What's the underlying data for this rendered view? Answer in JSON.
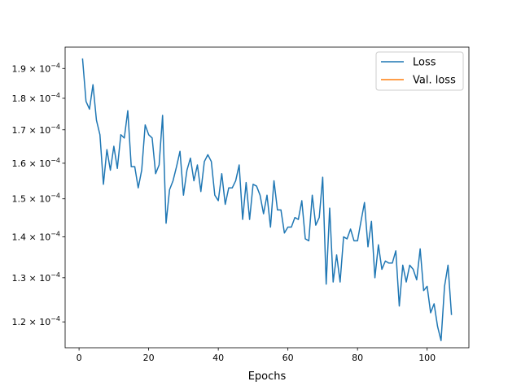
{
  "chart_data": {
    "type": "line",
    "xlabel": "Epochs",
    "ylabel": "",
    "title": "",
    "xlim": [
      -4,
      112
    ],
    "ylim": [
      0.0001145,
      0.0001975
    ],
    "yscale": "log",
    "grid": false,
    "legend_position": "top-right",
    "x_ticks": [
      0,
      20,
      40,
      60,
      80,
      100
    ],
    "x_tick_labels": [
      "0",
      "20",
      "40",
      "60",
      "80",
      "100"
    ],
    "y_ticks": [
      0.00012,
      0.00013,
      0.00014,
      0.00015,
      0.00016,
      0.00017,
      0.00018,
      0.00019
    ],
    "y_tick_labels": [
      {
        "mantissa": "1.2",
        "exp": "−4"
      },
      {
        "mantissa": "1.3",
        "exp": "−4"
      },
      {
        "mantissa": "1.4",
        "exp": "−4"
      },
      {
        "mantissa": "1.5",
        "exp": "−4"
      },
      {
        "mantissa": "1.6",
        "exp": "−4"
      },
      {
        "mantissa": "1.7",
        "exp": "−4"
      },
      {
        "mantissa": "1.8",
        "exp": "−4"
      },
      {
        "mantissa": "1.9",
        "exp": "−4"
      }
    ],
    "series": [
      {
        "name": "Loss",
        "color": "#1f77b4",
        "x": [
          1,
          2,
          3,
          4,
          5,
          6,
          7,
          8,
          9,
          10,
          11,
          12,
          13,
          14,
          15,
          16,
          17,
          18,
          19,
          20,
          21,
          22,
          23,
          24,
          25,
          26,
          27,
          28,
          29,
          30,
          31,
          32,
          33,
          34,
          35,
          36,
          37,
          38,
          39,
          40,
          41,
          42,
          43,
          44,
          45,
          46,
          47,
          48,
          49,
          50,
          51,
          52,
          53,
          54,
          55,
          56,
          57,
          58,
          59,
          60,
          61,
          62,
          63,
          64,
          65,
          66,
          67,
          68,
          69,
          70,
          71,
          72,
          73,
          74,
          75,
          76,
          77,
          78,
          79,
          80,
          81,
          82,
          83,
          84,
          85,
          86,
          87,
          88,
          89,
          90,
          91,
          92,
          93,
          94,
          95,
          96,
          97,
          98,
          99,
          100,
          101,
          102,
          103,
          104,
          105,
          106,
          107
        ],
        "y": [
          0.0001935,
          0.000179,
          0.0001765,
          0.0001845,
          0.000173,
          0.0001685,
          0.000154,
          0.000164,
          0.000158,
          0.000165,
          0.0001585,
          0.0001685,
          0.0001675,
          0.000176,
          0.000159,
          0.000159,
          0.000153,
          0.000158,
          0.0001715,
          0.0001685,
          0.0001675,
          0.000157,
          0.0001595,
          0.0001745,
          0.0001435,
          0.0001525,
          0.000155,
          0.000159,
          0.0001635,
          0.000151,
          0.000158,
          0.0001615,
          0.000155,
          0.0001595,
          0.000152,
          0.0001605,
          0.0001625,
          0.0001605,
          0.000151,
          0.0001495,
          0.000157,
          0.0001485,
          0.000153,
          0.000153,
          0.000155,
          0.0001595,
          0.0001445,
          0.0001545,
          0.0001445,
          0.000154,
          0.0001535,
          0.000151,
          0.000146,
          0.000151,
          0.0001425,
          0.000155,
          0.000147,
          0.000147,
          0.000141,
          0.0001425,
          0.0001425,
          0.000145,
          0.0001445,
          0.0001495,
          0.0001395,
          0.000139,
          0.000151,
          0.000143,
          0.000145,
          0.000156,
          0.0001285,
          0.0001475,
          0.000129,
          0.0001355,
          0.000129,
          0.00014,
          0.0001395,
          0.000142,
          0.000139,
          0.000139,
          0.000144,
          0.000149,
          0.0001375,
          0.000144,
          0.00013,
          0.000138,
          0.000132,
          0.000134,
          0.0001335,
          0.0001335,
          0.0001365,
          0.0001235,
          0.000133,
          0.000129,
          0.000133,
          0.000132,
          0.0001295,
          0.000137,
          0.000127,
          0.000128,
          0.000122,
          0.000124,
          0.000119,
          0.000116,
          0.000128,
          0.000133,
          0.0001215
        ]
      },
      {
        "name": "Val. loss",
        "color": "#ff7f0e",
        "x": [],
        "y": []
      }
    ]
  }
}
